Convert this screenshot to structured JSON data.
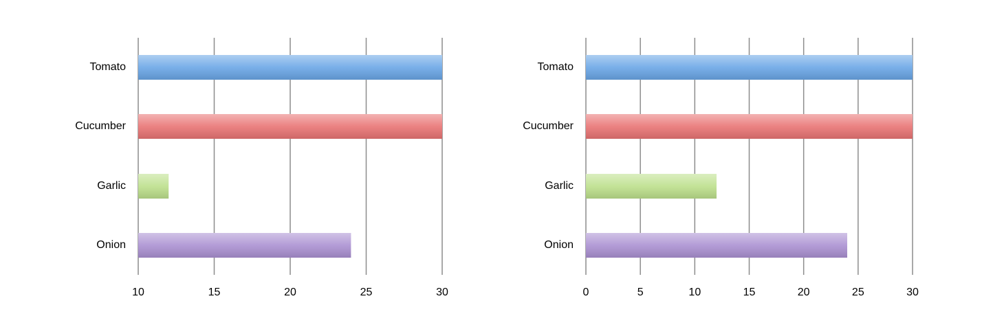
{
  "chart_data": [
    {
      "type": "bar",
      "orientation": "horizontal",
      "categories": [
        "Tomato",
        "Cucumber",
        "Garlic",
        "Onion"
      ],
      "values": [
        30,
        30,
        12,
        24
      ],
      "colors": [
        "#6aa6e6",
        "#e97474",
        "#bde08c",
        "#ab91d2"
      ],
      "xlim": [
        10,
        30
      ],
      "xticks": [
        10,
        15,
        20,
        25,
        30
      ],
      "grid": true
    },
    {
      "type": "bar",
      "orientation": "horizontal",
      "categories": [
        "Tomato",
        "Cucumber",
        "Garlic",
        "Onion"
      ],
      "values": [
        30,
        30,
        12,
        24
      ],
      "colors": [
        "#6aa6e6",
        "#e97474",
        "#bde08c",
        "#ab91d2"
      ],
      "xlim": [
        0,
        30
      ],
      "xticks": [
        0,
        5,
        10,
        15,
        20,
        25,
        30
      ],
      "grid": true
    }
  ]
}
